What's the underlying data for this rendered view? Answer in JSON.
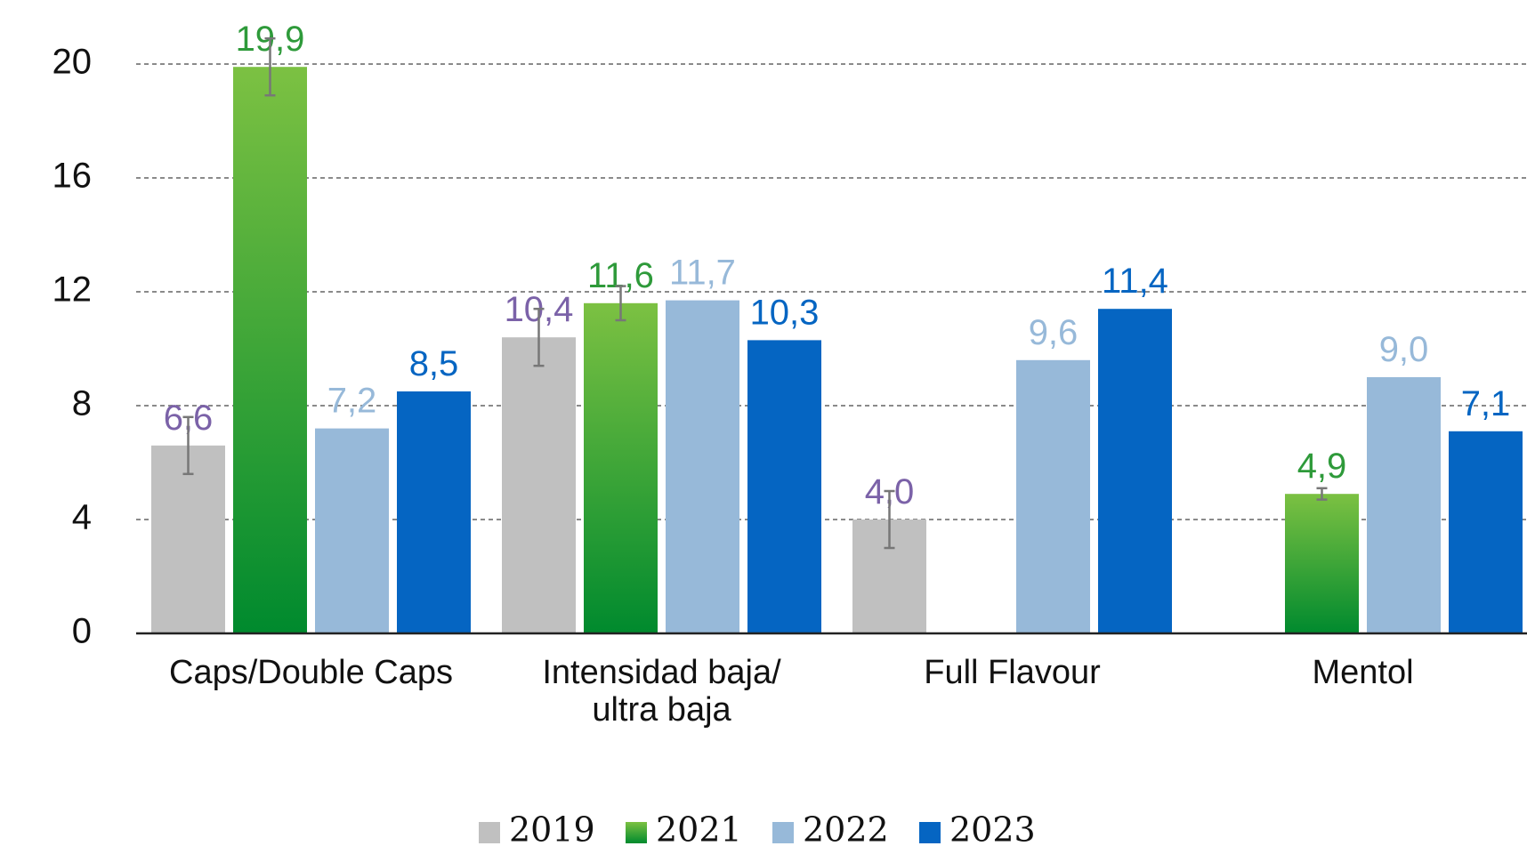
{
  "chart_data": {
    "type": "bar",
    "categories": [
      "Caps/Double Caps",
      "Intensidad baja/\nultra baja",
      "Full Flavour",
      "Mentol"
    ],
    "series": [
      {
        "name": "2019",
        "color": "#c0c0c0",
        "label_color": "#7b62a8",
        "values": [
          6.6,
          10.4,
          4.0,
          null
        ],
        "value_labels": [
          "6,6",
          "10,4",
          "4,0",
          null
        ],
        "errors": [
          1.0,
          1.0,
          1.0,
          null
        ]
      },
      {
        "name": "2021",
        "color": "#4cae3c",
        "gradient": [
          "#7cc142",
          "#008a2e"
        ],
        "label_color": "#2e9a3a",
        "values": [
          19.9,
          11.6,
          null,
          4.9
        ],
        "value_labels": [
          "19,9",
          "11,6",
          null,
          "4,9"
        ],
        "errors": [
          1.0,
          0.6,
          null,
          0.2
        ]
      },
      {
        "name": "2022",
        "color": "#97b9d9",
        "label_color": "#97b9d9",
        "values": [
          7.2,
          11.7,
          9.6,
          9.0
        ],
        "value_labels": [
          "7,2",
          "11,7",
          "9,6",
          "9,0"
        ]
      },
      {
        "name": "2023",
        "color": "#0565c2",
        "label_color": "#0565c2",
        "values": [
          8.5,
          10.3,
          11.4,
          7.1
        ],
        "value_labels": [
          "8,5",
          "10,3",
          "11,4",
          "7,1"
        ]
      }
    ],
    "ylim": [
      0,
      20
    ],
    "yticks": [
      0,
      4,
      8,
      12,
      16,
      20
    ],
    "grid": true,
    "legend": "bottom"
  }
}
